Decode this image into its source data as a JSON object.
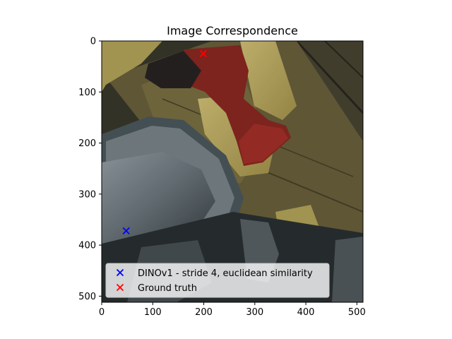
{
  "chart_data": {
    "type": "scatter",
    "title": "Image Correspondence",
    "xlabel": "",
    "ylabel": "",
    "xlim": [
      0,
      512
    ],
    "ylim": [
      512,
      0
    ],
    "xticks": [
      0,
      100,
      200,
      300,
      400,
      500
    ],
    "yticks": [
      0,
      100,
      200,
      300,
      400,
      500
    ],
    "grid": false,
    "legend_position": "lower-center",
    "background": "photo of a wooden plank scene with a red power drill and a gray octagonal object",
    "series": [
      {
        "name": "DINOv1 - stride 4, euclidean similarity",
        "color": "#0000ff",
        "marker": "x",
        "points": [
          {
            "x": 48,
            "y": 372
          }
        ]
      },
      {
        "name": "Ground truth",
        "color": "#ff0000",
        "marker": "x",
        "points": [
          {
            "x": 199,
            "y": 25
          }
        ]
      }
    ]
  }
}
